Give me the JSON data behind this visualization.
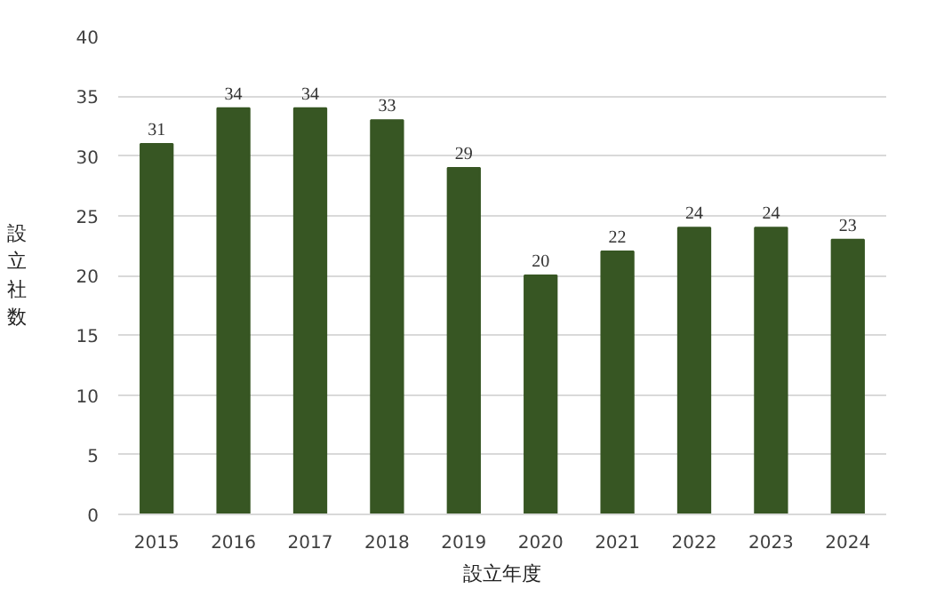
{
  "chart_data": {
    "type": "bar",
    "xlabel": "設立年度",
    "ylabel": "設立社数",
    "categories": [
      "2015",
      "2016",
      "2017",
      "2018",
      "2019",
      "2020",
      "2021",
      "2022",
      "2023",
      "2024"
    ],
    "values": [
      31,
      34,
      34,
      33,
      29,
      20,
      22,
      24,
      24,
      23
    ],
    "color": "#375623",
    "ylim": [
      0,
      40
    ],
    "yticks": [
      0,
      5,
      10,
      15,
      20,
      25,
      30,
      35,
      40
    ],
    "grid": "y",
    "data_labels": true
  }
}
